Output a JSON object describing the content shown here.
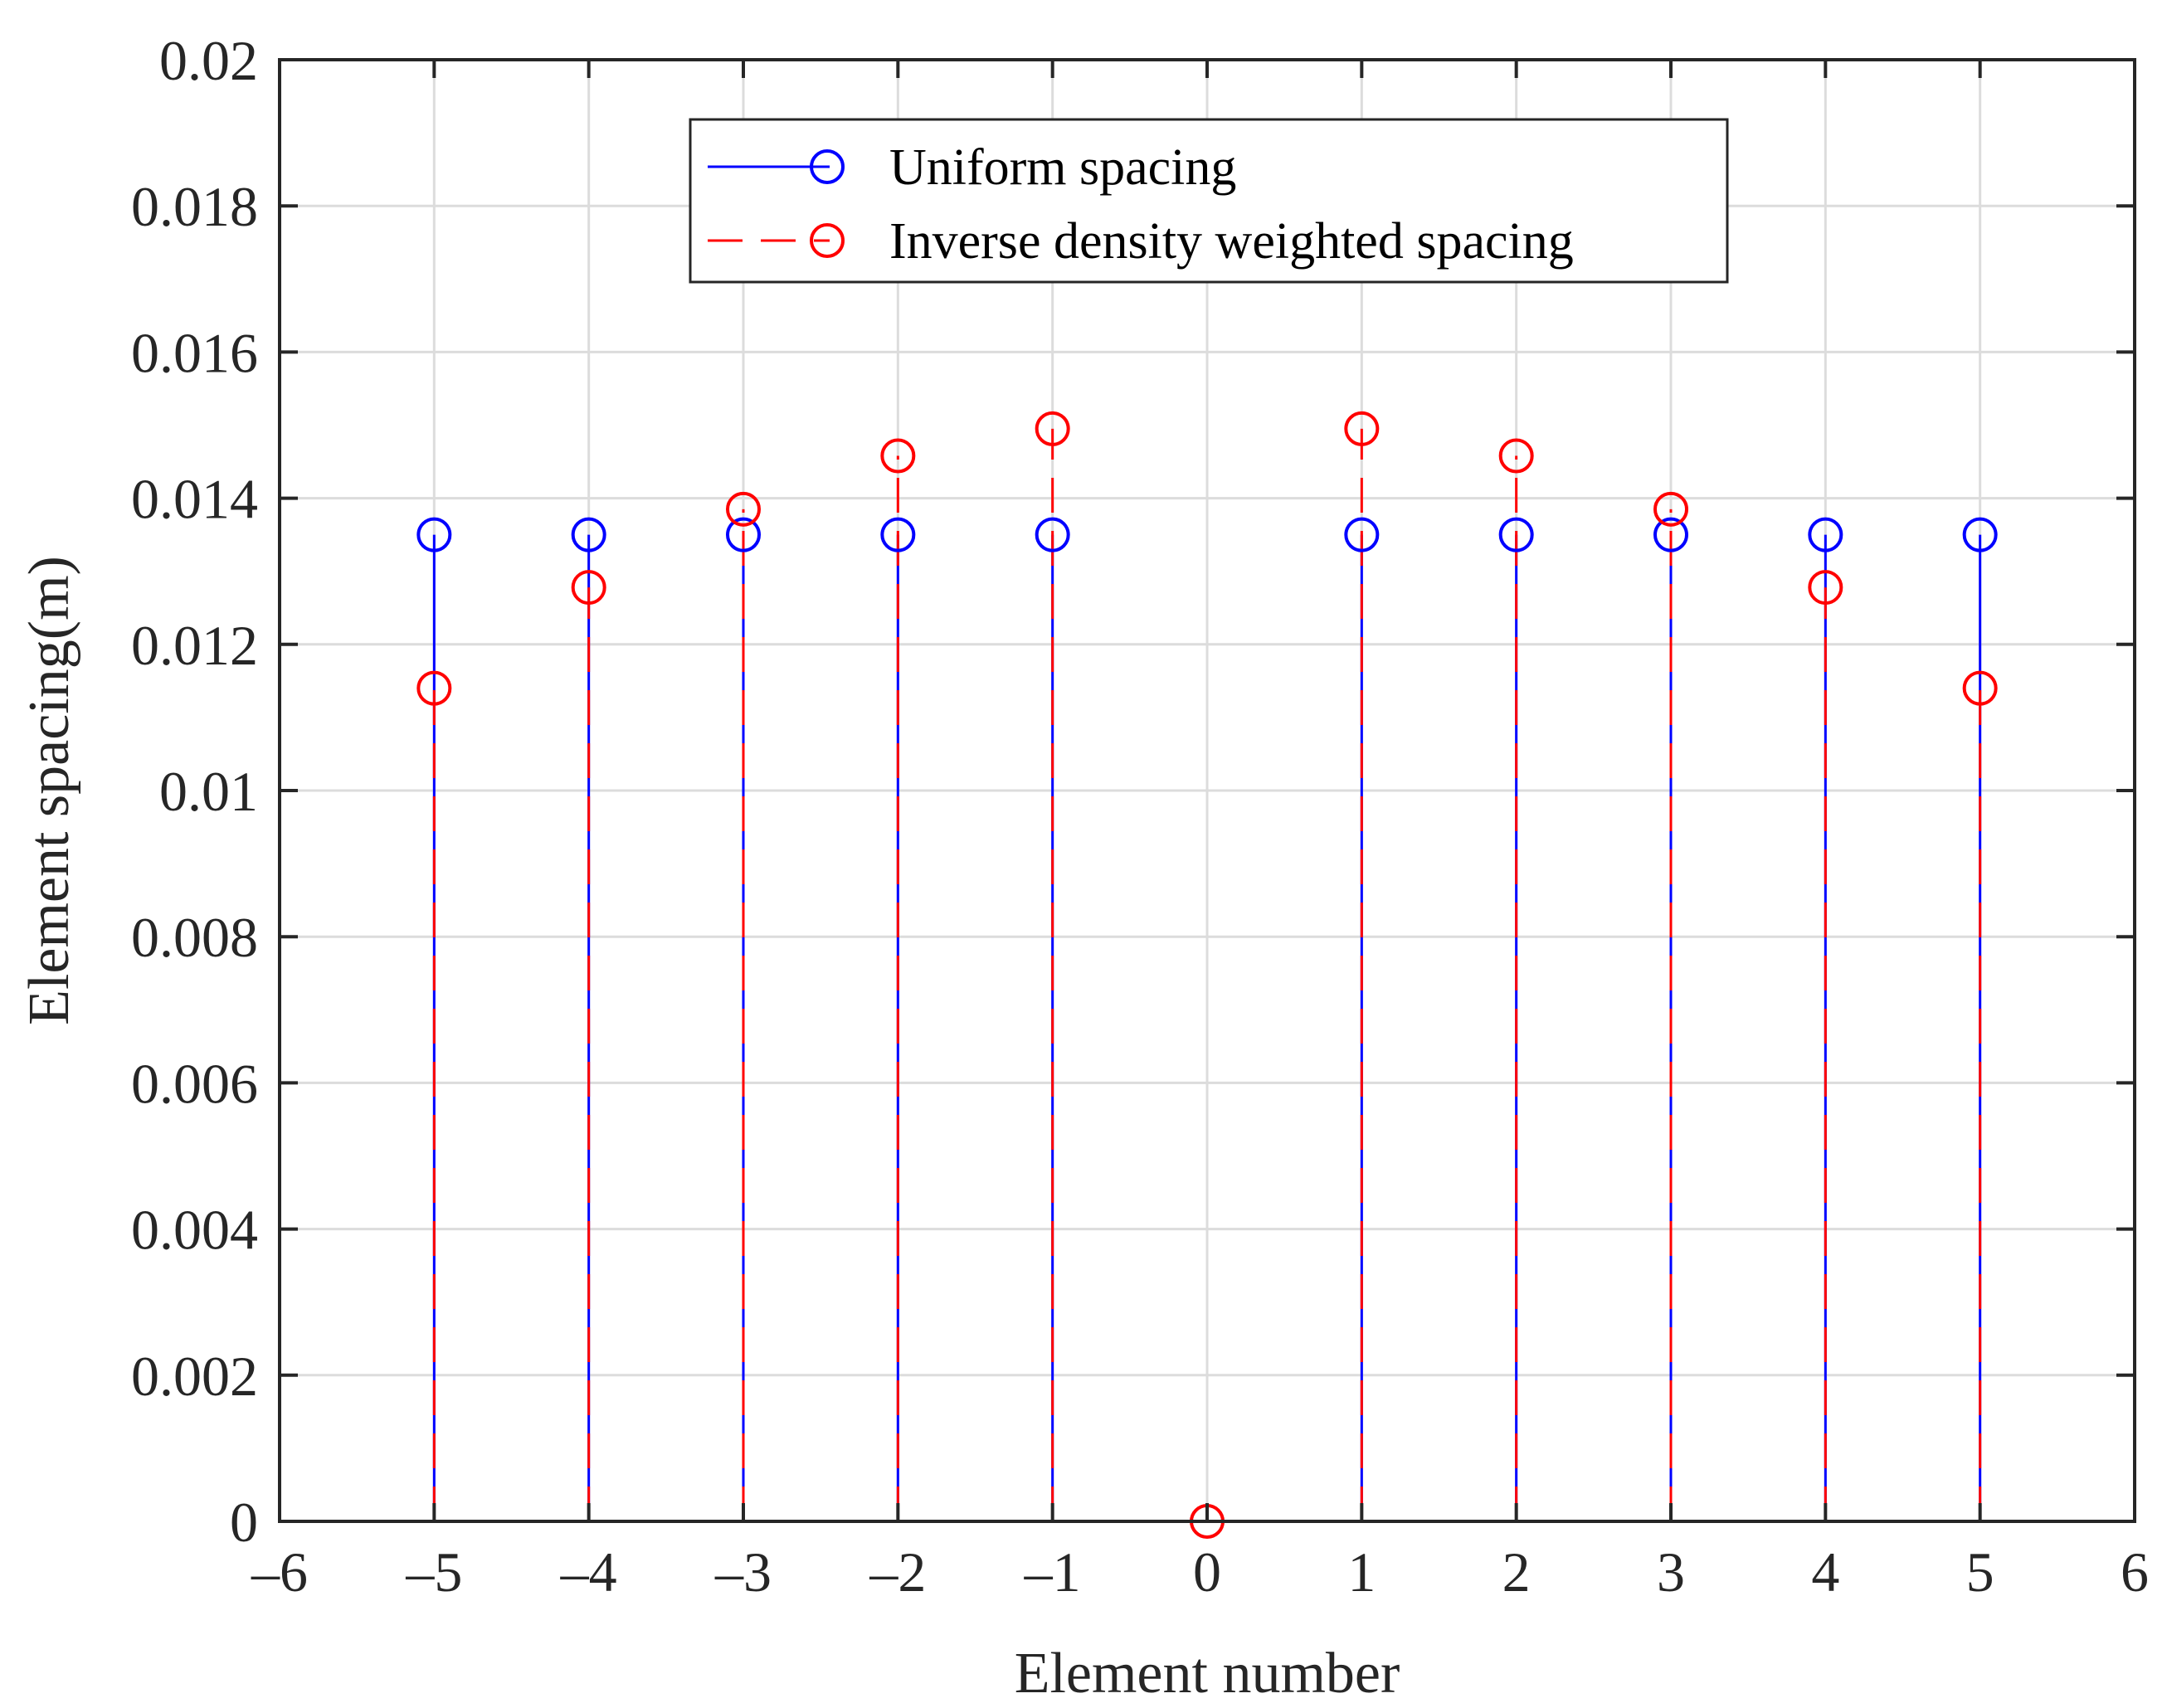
{
  "chart_data": {
    "type": "stem",
    "title": "",
    "xlabel": "Element number",
    "ylabel": "Element spacing(m)",
    "xlim": [
      -6,
      6
    ],
    "ylim": [
      0,
      0.02
    ],
    "xticks": [
      -6,
      -5,
      -4,
      -3,
      -2,
      -1,
      0,
      1,
      2,
      3,
      4,
      5,
      6
    ],
    "xtick_labels": [
      "–6",
      "–5",
      "–4",
      "–3",
      "–2",
      "–1",
      "0",
      "1",
      "2",
      "3",
      "4",
      "5",
      "6"
    ],
    "yticks": [
      0,
      0.002,
      0.004,
      0.006,
      0.008,
      0.01,
      0.012,
      0.014,
      0.016,
      0.018,
      0.02
    ],
    "ytick_labels": [
      "0",
      "0.002",
      "0.004",
      "0.006",
      "0.008",
      "0.01",
      "0.012",
      "0.014",
      "0.016",
      "0.018",
      "0.02"
    ],
    "grid": true,
    "legend_position": "top-center",
    "series": [
      {
        "name": "Uniform spacing",
        "color": "#0000ff",
        "line_style": "solid",
        "marker": "circle",
        "x": [
          -5,
          -4,
          -3,
          -2,
          -1,
          1,
          2,
          3,
          4,
          5
        ],
        "y": [
          0.0135,
          0.0135,
          0.0135,
          0.0135,
          0.0135,
          0.0135,
          0.0135,
          0.0135,
          0.0135,
          0.0135
        ]
      },
      {
        "name": "Inverse density weighted spacing",
        "color": "#ff0000",
        "line_style": "dashed",
        "marker": "circle",
        "x": [
          -5,
          -4,
          -3,
          -2,
          -1,
          0,
          1,
          2,
          3,
          4,
          5
        ],
        "y": [
          0.0114,
          0.01278,
          0.01385,
          0.01458,
          0.01495,
          0,
          0.01495,
          0.01458,
          0.01385,
          0.01278,
          0.0114
        ]
      }
    ]
  }
}
